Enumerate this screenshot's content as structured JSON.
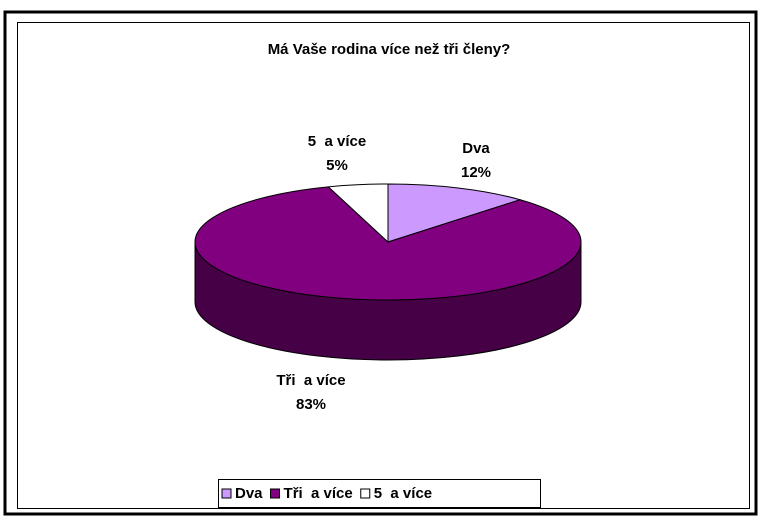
{
  "chart_data": {
    "type": "pie3d",
    "title": "Má Vaše rodina více než tři členy?",
    "categories": [
      "Dva",
      "Tři  a více",
      "5  a více"
    ],
    "values": [
      12,
      83,
      5
    ],
    "value_labels": [
      "12%",
      "83%",
      "5%"
    ],
    "colors": [
      "#cc99ff",
      "#800080",
      "#ffffff"
    ],
    "legend": "bottom"
  }
}
